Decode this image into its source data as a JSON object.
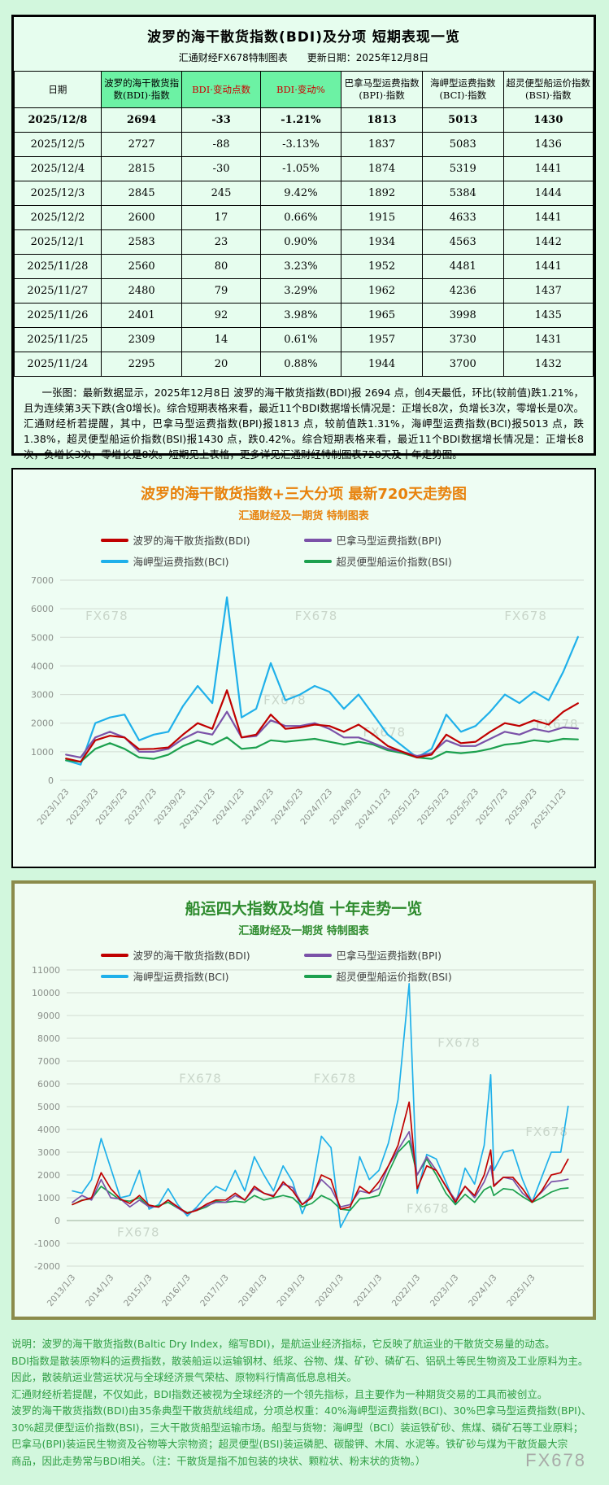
{
  "watermark_text": "FX678",
  "colors": {
    "bdi_red": "#c00000",
    "bpi_purple": "#7b52a8",
    "bci_blue": "#1fb0ea",
    "bsi_green": "#1ca04e",
    "accent_orange": "#e8820c",
    "title_green": "#2e8b2e",
    "header_highlight_green": "#6cf2a4",
    "page_background": "#d2f7dd",
    "box_border_olive": "#8b8b4b"
  },
  "top_section": {
    "title": "波罗的海干散货指数(BDI)及分项  短期表现一览",
    "subtitle": "汇通财经FX678特制图表　　更新日期：2025年12月8日",
    "table": {
      "columns": [
        {
          "label": "日期",
          "accent": false,
          "highlight": false
        },
        {
          "label": "波罗的海干散货指数(BDI)·指数",
          "accent": false,
          "highlight": true
        },
        {
          "label": "BDI·变动点数",
          "accent": true,
          "highlight": true
        },
        {
          "label": "BDI·变动%",
          "accent": true,
          "highlight": true
        },
        {
          "label": "巴拿马型运费指数(BPI)·指数",
          "accent": false,
          "highlight": false
        },
        {
          "label": "海岬型运费指数(BCI)·指数",
          "accent": false,
          "highlight": false
        },
        {
          "label": "超灵便型船运价指数(BSI)·指数",
          "accent": false,
          "highlight": false
        }
      ],
      "rows": [
        {
          "cells": [
            "2025/12/8",
            "2694",
            "-33",
            "-1.21%",
            "1813",
            "5013",
            "1430"
          ],
          "bold": true
        },
        {
          "cells": [
            "2025/12/5",
            "2727",
            "-88",
            "-3.13%",
            "1837",
            "5083",
            "1436"
          ],
          "bold": false
        },
        {
          "cells": [
            "2025/12/4",
            "2815",
            "-30",
            "-1.05%",
            "1874",
            "5319",
            "1441"
          ],
          "bold": false
        },
        {
          "cells": [
            "2025/12/3",
            "2845",
            "245",
            "9.42%",
            "1892",
            "5384",
            "1444"
          ],
          "bold": false
        },
        {
          "cells": [
            "2025/12/2",
            "2600",
            "17",
            "0.66%",
            "1915",
            "4633",
            "1441"
          ],
          "bold": false
        },
        {
          "cells": [
            "2025/12/1",
            "2583",
            "23",
            "0.90%",
            "1934",
            "4563",
            "1442"
          ],
          "bold": false
        },
        {
          "cells": [
            "2025/11/28",
            "2560",
            "80",
            "3.23%",
            "1952",
            "4481",
            "1441"
          ],
          "bold": false
        },
        {
          "cells": [
            "2025/11/27",
            "2480",
            "79",
            "3.29%",
            "1962",
            "4236",
            "1437"
          ],
          "bold": false
        },
        {
          "cells": [
            "2025/11/26",
            "2401",
            "92",
            "3.98%",
            "1965",
            "3998",
            "1435"
          ],
          "bold": false
        },
        {
          "cells": [
            "2025/11/25",
            "2309",
            "14",
            "0.61%",
            "1957",
            "3730",
            "1431"
          ],
          "bold": false
        },
        {
          "cells": [
            "2025/11/24",
            "2295",
            "20",
            "0.88%",
            "1944",
            "3700",
            "1432"
          ],
          "bold": false
        }
      ]
    },
    "summary": "一张图：最新数据显示，2025年12月8日 波罗的海干散货指数(BDI)报 2694 点，创4天最低，环比(较前值)跌1.21%，且为连续第3天下跌(含0增长)。综合短期表格来看，最近11个BDI数据增长情况是：正增长8次，负增长3次，零增长是0次。汇通财经析若提醒，其中，巴拿马型运费指数(BPI)报1813 点，较前值跌1.31%，海岬型运费指数(BCI)报5013 点，跌1.38%，超灵便型船运价指数(BSI)报1430 点，跌0.42%。综合短期表格来看，最近11个BDI数据增长情况是：正增长8次，负增长3次，零增长是0次。短期见上表格，更多详见汇通财经特制图表720天及十年走势图。"
  },
  "chart_data": [
    {
      "id": "trend720",
      "type": "line",
      "title": "波罗的海干散货指数+三大分项  最新720天走势图",
      "subtitle": "汇通财经及一期货 特制图表",
      "grid": true,
      "legend_position": "top",
      "ylim": [
        0,
        7000
      ],
      "yticks": [
        0,
        1000,
        2000,
        3000,
        4000,
        5000,
        6000,
        7000
      ],
      "xlim": [
        -0.4,
        35.4
      ],
      "xtick_x": [
        0,
        2,
        4,
        6,
        8,
        10,
        12,
        14,
        16,
        18,
        20,
        22,
        24,
        26,
        28,
        30,
        32,
        34
      ],
      "xtick_labels": [
        "2023/1/23",
        "2023/3/23",
        "2023/5/23",
        "2023/7/23",
        "2023/9/23",
        "2023/11/23",
        "2024/1/23",
        "2024/3/23",
        "2024/5/23",
        "2024/7/23",
        "2024/9/23",
        "2024/11/23",
        "2025/1/23",
        "2025/3/23",
        "2025/5/23",
        "2025/7/23",
        "2025/9/23",
        "2025/11/23"
      ],
      "x": [
        0,
        1,
        2,
        3,
        4,
        5,
        6,
        7,
        8,
        9,
        10,
        11,
        12,
        13,
        14,
        15,
        16,
        17,
        18,
        19,
        20,
        21,
        22,
        23,
        24,
        25,
        26,
        27,
        28,
        29,
        30,
        31,
        32,
        33,
        34,
        35
      ],
      "line_width": 2.2,
      "draw_order": [
        2,
        3,
        1,
        0
      ],
      "series": [
        {
          "name": "波罗的海干散货指数(BDI)",
          "color": "#c00000",
          "values": [
            764,
            650,
            1400,
            1560,
            1500,
            1090,
            1100,
            1150,
            1600,
            2000,
            1800,
            3150,
            1500,
            1600,
            2300,
            1800,
            1850,
            1950,
            1900,
            1700,
            1950,
            1600,
            1200,
            1000,
            800,
            900,
            1600,
            1300,
            1350,
            1700,
            2000,
            1900,
            2100,
            1950,
            2400,
            2694
          ]
        },
        {
          "name": "巴拿马型运费指数(BPI)",
          "color": "#7b52a8",
          "values": [
            900,
            800,
            1500,
            1700,
            1500,
            1000,
            1000,
            1100,
            1450,
            1700,
            1600,
            2400,
            1500,
            1550,
            2100,
            1900,
            1900,
            2000,
            1800,
            1500,
            1500,
            1300,
            1100,
            1000,
            850,
            950,
            1400,
            1200,
            1200,
            1450,
            1700,
            1600,
            1800,
            1700,
            1850,
            1813
          ]
        },
        {
          "name": "海岬型运费指数(BCI)",
          "color": "#1fb0ea",
          "values": [
            700,
            550,
            2000,
            2200,
            2300,
            1400,
            1600,
            1700,
            2600,
            3300,
            2700,
            6400,
            2200,
            2500,
            4100,
            2800,
            3000,
            3300,
            3100,
            2500,
            3000,
            2300,
            1600,
            1200,
            800,
            1100,
            2300,
            1700,
            1900,
            2400,
            3000,
            2700,
            3100,
            2800,
            3800,
            5013
          ]
        },
        {
          "name": "超灵便型船运价指数(BSI)",
          "color": "#1ca04e",
          "values": [
            700,
            650,
            1100,
            1300,
            1100,
            800,
            750,
            900,
            1200,
            1400,
            1250,
            1500,
            1100,
            1150,
            1400,
            1350,
            1400,
            1450,
            1350,
            1250,
            1350,
            1250,
            1050,
            950,
            800,
            750,
            1000,
            950,
            1000,
            1100,
            1250,
            1300,
            1400,
            1350,
            1450,
            1430
          ]
        }
      ],
      "watermarks": [
        {
          "fx": 0.13,
          "fy": 0.2
        },
        {
          "fx": 0.53,
          "fy": 0.2
        },
        {
          "fx": 0.93,
          "fy": 0.2
        },
        {
          "fx": 0.47,
          "fy": 0.62
        },
        {
          "fx": 0.66,
          "fy": 0.78
        },
        {
          "fx": 0.99,
          "fy": 0.74
        }
      ]
    },
    {
      "id": "trend10yr",
      "type": "line",
      "title": "船运四大指数及均值 十年走势一览",
      "subtitle": "汇通财经及一期货 特制图表",
      "grid": true,
      "legend_position": "top",
      "ylim": [
        -2000,
        11000
      ],
      "yticks": [
        -2000,
        -1000,
        0,
        1000,
        2000,
        3000,
        4000,
        5000,
        6000,
        7000,
        8000,
        9000,
        10000,
        11000
      ],
      "xlim": [
        2012.85,
        2026.35
      ],
      "xtick_x": [
        2013,
        2014,
        2015,
        2016,
        2017,
        2018,
        2019,
        2020,
        2021,
        2022,
        2023,
        2024,
        2025
      ],
      "xtick_labels": [
        "2013/1/3",
        "2014/1/3",
        "2015/1/3",
        "2016/1/3",
        "2017/1/3",
        "2018/1/3",
        "2019/1/3",
        "2020/1/3",
        "2021/1/3",
        "2022/1/3",
        "2023/1/3",
        "2024/1/3",
        "2025/1/3"
      ],
      "x": [
        2013.0,
        2013.25,
        2013.5,
        2013.75,
        2014.0,
        2014.25,
        2014.5,
        2014.75,
        2015.0,
        2015.25,
        2015.5,
        2015.75,
        2016.0,
        2016.25,
        2016.5,
        2016.75,
        2017.0,
        2017.25,
        2017.5,
        2017.75,
        2018.0,
        2018.25,
        2018.5,
        2018.75,
        2019.0,
        2019.25,
        2019.5,
        2019.75,
        2020.0,
        2020.25,
        2020.5,
        2020.75,
        2021.0,
        2021.25,
        2021.5,
        2021.79,
        2022.0,
        2022.25,
        2022.5,
        2022.75,
        2023.0,
        2023.25,
        2023.5,
        2023.75,
        2023.92,
        2024.0,
        2024.25,
        2024.5,
        2024.75,
        2025.0,
        2025.25,
        2025.5,
        2025.75,
        2025.94
      ],
      "line_width": 1.7,
      "draw_order": [
        2,
        3,
        1,
        0
      ],
      "series": [
        {
          "name": "波罗的海干散货指数(BDI)",
          "color": "#c00000",
          "values": [
            700,
            880,
            1000,
            2100,
            1400,
            950,
            750,
            1100,
            680,
            590,
            900,
            600,
            320,
            450,
            720,
            900,
            900,
            1200,
            900,
            1500,
            1200,
            1050,
            1700,
            1300,
            700,
            1000,
            2000,
            1800,
            500,
            600,
            1500,
            1200,
            1700,
            2400,
            3300,
            5200,
            1400,
            2400,
            2200,
            1500,
            800,
            1500,
            1100,
            2000,
            3100,
            1500,
            1900,
            1900,
            1400,
            800,
            1300,
            2000,
            2100,
            2694
          ]
        },
        {
          "name": "巴拿马型运费指数(BPI)",
          "color": "#7b52a8",
          "values": [
            800,
            1100,
            900,
            1800,
            1000,
            950,
            600,
            900,
            600,
            600,
            900,
            550,
            300,
            500,
            650,
            800,
            800,
            1100,
            900,
            1400,
            1200,
            1100,
            1600,
            1450,
            700,
            1100,
            1800,
            1400,
            600,
            700,
            1300,
            1200,
            1400,
            2400,
            3100,
            3900,
            2000,
            2800,
            2200,
            1500,
            900,
            1500,
            1000,
            1700,
            2400,
            1550,
            1900,
            1800,
            1200,
            850,
            1250,
            1700,
            1750,
            1813
          ]
        },
        {
          "name": "海岬型运费指数(BCI)",
          "color": "#1fb0ea",
          "values": [
            1300,
            1200,
            1800,
            3600,
            2300,
            1000,
            1100,
            2200,
            500,
            700,
            1400,
            700,
            200,
            600,
            1100,
            1500,
            1300,
            2200,
            1300,
            2800,
            2000,
            1300,
            2400,
            1700,
            300,
            1300,
            3700,
            3200,
            -300,
            500,
            2800,
            1800,
            2200,
            3400,
            5300,
            10400,
            1200,
            2900,
            2700,
            1700,
            700,
            2300,
            1600,
            3300,
            6400,
            2200,
            3000,
            3100,
            1800,
            800,
            1900,
            3000,
            3000,
            5013
          ]
        },
        {
          "name": "超灵便型船运价指数(BSI)",
          "color": "#1ca04e",
          "values": [
            700,
            900,
            950,
            1500,
            1200,
            900,
            850,
            1000,
            600,
            650,
            800,
            550,
            350,
            450,
            600,
            850,
            800,
            850,
            800,
            1100,
            900,
            1000,
            1100,
            1000,
            600,
            750,
            1100,
            900,
            500,
            450,
            950,
            1000,
            1100,
            2100,
            3000,
            3500,
            2000,
            2700,
            2000,
            1200,
            700,
            1150,
            800,
            1350,
            1500,
            1100,
            1400,
            1350,
            1050,
            800,
            1000,
            1250,
            1400,
            1430
          ]
        }
      ],
      "watermarks": [
        {
          "fx": 0.3,
          "fy": 0.38
        },
        {
          "fx": 0.56,
          "fy": 0.38
        },
        {
          "fx": 0.8,
          "fy": 0.26
        },
        {
          "fx": 0.18,
          "fy": 0.9
        },
        {
          "fx": 0.74,
          "fy": 0.82
        },
        {
          "fx": 0.97,
          "fy": 0.56
        }
      ]
    }
  ],
  "notes": {
    "lines": [
      "说明：波罗的海干散货指数(Baltic Dry Index，缩写BDI)，是航运业经济指标，它反映了航运业的干散货交易量的动态。",
      "BDI指数是散装原物料的运费指数，散装船运以运输钢材、纸浆、谷物、煤、矿砂、磷矿石、铝矾土等民生物资及工业原料为主。",
      "因此，散装航运业营运状况与全球经济景气荣枯、原物料行情高低息息相关。",
      "汇通财经析若提醒，不仅如此，BDI指数还被视为全球经济的一个领先指标，且主要作为一种期货交易的工具而被创立。",
      "波罗的海干散货指数(BDI)由35条典型干散货航线组成，分项总权重：40%海岬型运费指数(BCI)、30%巴拿马型运费指数(BPI)、",
      "30%超灵便型运价指数(BSI)，三大干散货船型运输市场。船型与货物：海岬型（BCI）装运铁矿砂、焦煤、磷矿石等工业原料；",
      "巴拿马(BPI)装运民生物资及谷物等大宗物资；超灵便型(BSI)装运磷肥、碳酸钾、木屑、水泥等。铁矿砂与煤为干散货最大宗",
      "商品，因此走势常与BDI相关。（注：干散货是指不加包装的块状、颗粒状、粉末状的货物。）"
    ],
    "footer_watermark": "FX678"
  }
}
